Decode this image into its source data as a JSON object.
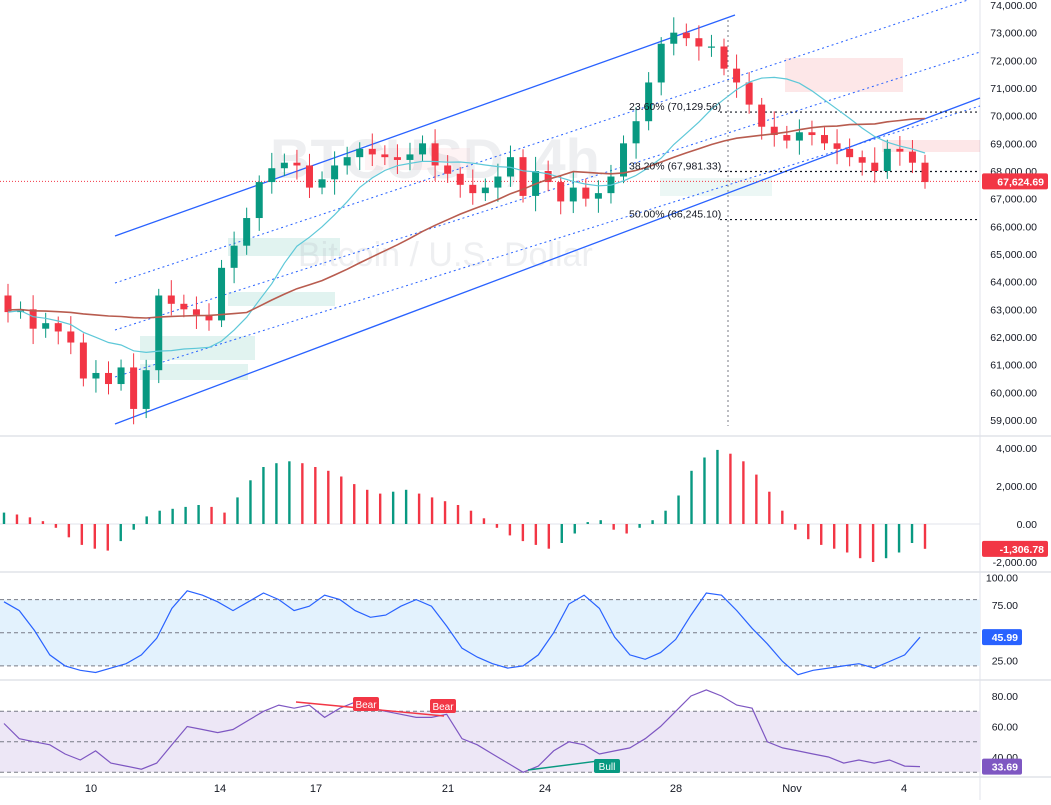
{
  "watermark": {
    "symbol": "BTCUSD, 4h",
    "description": "Bitcoin / U.S. Dollar"
  },
  "price_axis": [
    "74,000.00",
    "73,000.00",
    "72,000.00",
    "71,000.00",
    "70,000.00",
    "69,000.00",
    "68,000.00",
    "67,000.00",
    "66,000.00",
    "65,000.00",
    "64,000.00",
    "63,000.00",
    "62,000.00",
    "61,000.00",
    "60,000.00",
    "59,000.00"
  ],
  "price_axis_values": [
    74000,
    73000,
    72000,
    71000,
    70000,
    69000,
    68000,
    67000,
    66000,
    65000,
    64000,
    63000,
    62000,
    61000,
    60000,
    59000
  ],
  "current_price_label": "67,624.69",
  "date_axis": [
    "10",
    "14",
    "17",
    "21",
    "24",
    "28",
    "Nov",
    "4"
  ],
  "fib_levels": [
    {
      "label": "23.60% (70,129.56)",
      "value": 70129.56
    },
    {
      "label": "38.20% (67,981.33)",
      "value": 67981.33
    },
    {
      "label": "50.00% (66,245.10)",
      "value": 66245.1
    }
  ],
  "signals": {
    "bear1": "Bear",
    "bear2": "Bear",
    "bull": "Bull"
  },
  "macd_axis": [
    "4,000.00",
    "2,000.00",
    "0.00",
    "-2,000.00"
  ],
  "macd_axis_values": [
    4000,
    2000,
    0,
    -2000
  ],
  "macd_current_label": "-1,306.78",
  "stoch_axis": [
    "100.00",
    "75.00",
    "50.00",
    "25.00"
  ],
  "stoch_axis_values": [
    100,
    75,
    50,
    25
  ],
  "stoch_current_label": "45.99",
  "rsi_axis": [
    "80.00",
    "60.00",
    "40.00"
  ],
  "rsi_axis_values": [
    80,
    60,
    40
  ],
  "rsi_current_label": "33.69",
  "colors": {
    "up": "#089981",
    "down": "#f23645",
    "channel": "#2962ff",
    "sma_slow": "#b85c4f",
    "sma_fast": "#5ec8d8",
    "stoch": "#2962ff",
    "rsi": "#7e57c2",
    "price_tag": "#f23645",
    "stoch_band": "#e3f2fd",
    "rsi_band": "#ede7f6"
  },
  "chart_data": [
    {
      "type": "candlestick",
      "title": "BTCUSD, 4h",
      "subtitle": "Bitcoin / U.S. Dollar",
      "xlabel": "",
      "ylabel": "",
      "ylim": [
        58500,
        74200
      ],
      "date_ticks": [
        "10",
        "14",
        "17",
        "21",
        "24",
        "28",
        "Nov",
        "4"
      ],
      "close_series": [
        62900,
        63000,
        62300,
        62500,
        62200,
        61800,
        60500,
        60700,
        60300,
        60900,
        59400,
        60800,
        63500,
        63200,
        63000,
        62800,
        62600,
        64500,
        65300,
        66300,
        67600,
        68100,
        68300,
        68200,
        67400,
        67700,
        68200,
        68500,
        68800,
        68600,
        68500,
        68400,
        68600,
        69000,
        68200,
        67900,
        67500,
        67200,
        67400,
        67800,
        68500,
        67100,
        68000,
        67600,
        66900,
        67400,
        67000,
        67200,
        67800,
        69000,
        69800,
        71200,
        72600,
        73000,
        72800,
        72500,
        72500,
        71700,
        71200,
        70400,
        69600,
        69300,
        69100,
        69400,
        69300,
        69000,
        68800,
        68500,
        68300,
        68000,
        68800,
        68700,
        68300,
        67600
      ],
      "series": [
        {
          "name": "SMA fast",
          "role": "sma_fast"
        },
        {
          "name": "SMA slow",
          "role": "sma_slow"
        }
      ],
      "last_price": 67624.69
    },
    {
      "type": "bar",
      "title": "",
      "ylim": [
        -2200,
        4200
      ],
      "values": [
        600,
        500,
        350,
        150,
        -200,
        -700,
        -1100,
        -1300,
        -1400,
        -900,
        -300,
        400,
        700,
        800,
        900,
        1000,
        900,
        600,
        1400,
        2300,
        3000,
        3200,
        3300,
        3200,
        3000,
        2800,
        2500,
        2100,
        1800,
        1600,
        1700,
        1800,
        1600,
        1400,
        1200,
        1000,
        700,
        300,
        -200,
        -600,
        -900,
        -1100,
        -1300,
        -1000,
        -500,
        100,
        200,
        -300,
        -500,
        -200,
        200,
        700,
        1500,
        2800,
        3500,
        3900,
        3700,
        3300,
        2600,
        1700,
        700,
        -300,
        -800,
        -1100,
        -1300,
        -1500,
        -1800,
        -2000,
        -1800,
        -1500,
        -1000,
        -1306.78
      ],
      "last_value": -1306.78
    },
    {
      "type": "line",
      "title": "",
      "ylim": [
        0,
        100
      ],
      "bands": [
        20,
        50,
        80
      ],
      "values": [
        78,
        70,
        52,
        30,
        20,
        16,
        14,
        18,
        22,
        30,
        45,
        72,
        88,
        84,
        78,
        70,
        78,
        86,
        80,
        70,
        74,
        84,
        80,
        70,
        64,
        66,
        74,
        80,
        74,
        56,
        36,
        28,
        22,
        18,
        20,
        30,
        50,
        76,
        84,
        72,
        46,
        30,
        26,
        32,
        44,
        66,
        86,
        84,
        70,
        54,
        40,
        24,
        12,
        16,
        18,
        20,
        22,
        18,
        24,
        30,
        46
      ],
      "last_value": 45.99
    },
    {
      "type": "line",
      "title": "",
      "ylim": [
        28,
        88
      ],
      "bands": [
        30,
        50,
        70
      ],
      "values": [
        62,
        52,
        50,
        48,
        42,
        38,
        44,
        36,
        34,
        32,
        36,
        48,
        60,
        58,
        56,
        58,
        64,
        70,
        74,
        72,
        74,
        66,
        72,
        76,
        72,
        70,
        68,
        66,
        66,
        68,
        52,
        48,
        42,
        36,
        30,
        34,
        44,
        50,
        48,
        42,
        44,
        46,
        52,
        60,
        70,
        80,
        84,
        80,
        74,
        72,
        50,
        46,
        44,
        42,
        40,
        36,
        38,
        36,
        38,
        34,
        33.69
      ],
      "last_value": 33.69,
      "annotations": [
        "Bear",
        "Bear",
        "Bull"
      ]
    }
  ]
}
